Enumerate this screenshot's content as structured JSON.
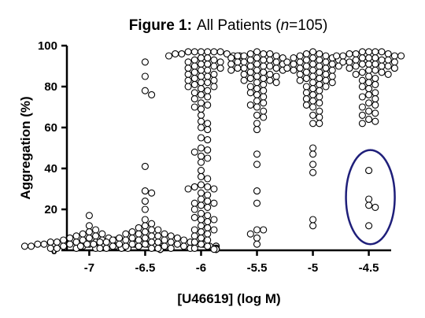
{
  "chart_data": {
    "type": "scatter",
    "title": {
      "prefix": "Figure 1:",
      "main": "All Patients (",
      "n_symbol": "n",
      "n_value": "=105)"
    },
    "xlabel": "[U46619] (log M)",
    "ylabel": "Aggregation (%)",
    "ylim": [
      0,
      100
    ],
    "xlim": [
      -7.2,
      -4.3
    ],
    "yticks": [
      0,
      20,
      40,
      60,
      80,
      100
    ],
    "xticks": [
      "-7",
      "-6.5",
      "-6",
      "-5.5",
      "-5",
      "-4.5"
    ],
    "grid": false,
    "marker": "open-circle",
    "highlight_color": "#1f1f7a",
    "series": [
      {
        "x": -7,
        "values": [
          17,
          12,
          10,
          9,
          8,
          8,
          7,
          7,
          6,
          6,
          6,
          5,
          5,
          5,
          5,
          4,
          4,
          4,
          4,
          4,
          4,
          3,
          3,
          3,
          3,
          3,
          3,
          3,
          3,
          2,
          2,
          2,
          2,
          2,
          2,
          2,
          2,
          1,
          1,
          1,
          1,
          1,
          1,
          1,
          1,
          1,
          0.5,
          0.5,
          0.5,
          0.5,
          0.5,
          0.5,
          0.5
        ]
      },
      {
        "x": -6.5,
        "values": [
          92,
          85,
          78,
          76,
          41,
          29,
          28,
          24,
          20,
          15,
          13,
          12,
          11,
          10,
          10,
          9,
          9,
          8,
          8,
          8,
          7,
          7,
          7,
          6,
          6,
          6,
          6,
          5,
          5,
          5,
          5,
          5,
          4,
          4,
          4,
          4,
          4,
          4,
          3,
          3,
          3,
          3,
          3,
          3,
          3,
          3,
          2,
          2,
          2,
          2,
          2,
          2,
          2,
          2,
          2,
          2,
          1,
          1,
          1,
          1,
          1,
          1,
          1,
          1,
          1,
          1,
          1,
          1,
          0.5,
          0.5,
          0.5,
          0.5,
          0.5,
          0.5
        ]
      },
      {
        "x": -6,
        "values": [
          97,
          97,
          97,
          97,
          97,
          97,
          96,
          96,
          96,
          95,
          95,
          95,
          94,
          94,
          93,
          93,
          92,
          92,
          91,
          91,
          90,
          90,
          89,
          89,
          88,
          88,
          87,
          86,
          86,
          85,
          85,
          84,
          83,
          83,
          82,
          82,
          81,
          80,
          80,
          79,
          78,
          77,
          76,
          75,
          74,
          72,
          71,
          70,
          69,
          66,
          63,
          62,
          60,
          59,
          55,
          54,
          50,
          49,
          48,
          46,
          45,
          43,
          39,
          36,
          35,
          32,
          31,
          31,
          30,
          30,
          28,
          27,
          25,
          24,
          23,
          23,
          22,
          21,
          20,
          18,
          17,
          16,
          15,
          15,
          14,
          12,
          11,
          10,
          10,
          9,
          8,
          7,
          6,
          5,
          4,
          3,
          2,
          1,
          0.5
        ]
      },
      {
        "x": -5.5,
        "values": [
          97,
          96,
          96,
          96,
          95,
          95,
          95,
          94,
          94,
          94,
          93,
          93,
          93,
          92,
          92,
          92,
          91,
          91,
          91,
          90,
          90,
          90,
          89,
          89,
          89,
          88,
          88,
          88,
          87,
          87,
          86,
          86,
          85,
          85,
          84,
          84,
          83,
          83,
          82,
          82,
          81,
          80,
          79,
          78,
          77,
          76,
          75,
          73,
          72,
          71,
          70,
          68,
          66,
          65,
          62,
          59,
          47,
          42,
          29,
          23,
          10,
          10,
          8,
          6,
          3
        ]
      },
      {
        "x": -5,
        "values": [
          97,
          96,
          96,
          95,
          95,
          94,
          94,
          94,
          93,
          93,
          93,
          92,
          92,
          92,
          91,
          91,
          91,
          90,
          90,
          90,
          89,
          89,
          89,
          88,
          88,
          88,
          87,
          87,
          86,
          86,
          85,
          85,
          84,
          84,
          83,
          83,
          82,
          82,
          81,
          80,
          80,
          79,
          78,
          77,
          76,
          75,
          74,
          73,
          72,
          71,
          70,
          68,
          66,
          65,
          62,
          62,
          50,
          47,
          42,
          38,
          15,
          12
        ]
      },
      {
        "x": -4.5,
        "values": [
          97,
          97,
          97,
          97,
          96,
          96,
          96,
          95,
          95,
          95,
          95,
          94,
          94,
          94,
          93,
          93,
          93,
          92,
          92,
          92,
          91,
          91,
          91,
          90,
          90,
          90,
          89,
          89,
          88,
          88,
          87,
          87,
          86,
          86,
          85,
          84,
          83,
          82,
          81,
          80,
          79,
          77,
          76,
          75,
          74,
          72,
          71,
          70,
          68,
          67,
          66,
          64,
          63,
          62,
          39,
          25,
          22,
          21,
          12
        ]
      }
    ]
  }
}
